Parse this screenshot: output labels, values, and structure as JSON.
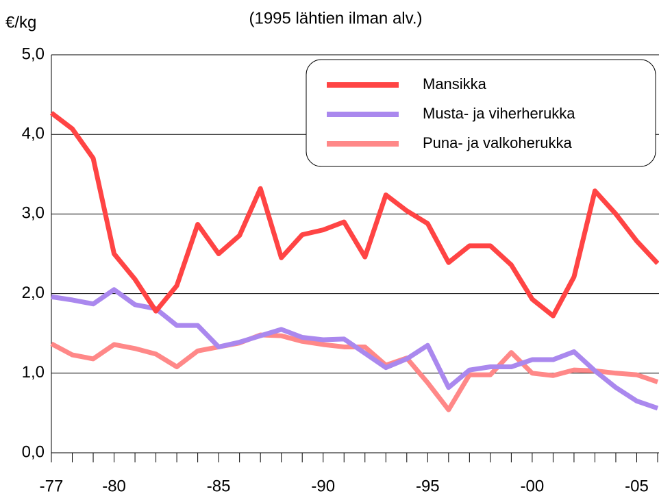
{
  "chart_data": {
    "type": "line",
    "subtitle": "(1995 lähtien ilman alv.)",
    "y_label": "€/kg",
    "categories": [
      "-77",
      null,
      null,
      "-80",
      null,
      null,
      null,
      null,
      "-85",
      null,
      null,
      null,
      null,
      "-90",
      null,
      null,
      null,
      null,
      "-95",
      null,
      null,
      null,
      null,
      "-00",
      null,
      null,
      null,
      null,
      "-05",
      null
    ],
    "series": [
      {
        "name": "Mansikka",
        "color": "#ff4444",
        "values": [
          4.27,
          4.07,
          3.7,
          2.5,
          2.18,
          1.78,
          2.1,
          2.87,
          2.5,
          2.73,
          3.32,
          2.45,
          2.74,
          2.8,
          2.9,
          2.46,
          3.24,
          3.04,
          2.88,
          2.39,
          2.6,
          2.6,
          2.36,
          1.93,
          1.72,
          2.21,
          3.29,
          3.0,
          2.66,
          2.38
        ]
      },
      {
        "name": "Musta- ja viherherukka",
        "color": "#aa88ee",
        "values": [
          1.96,
          1.92,
          1.87,
          2.05,
          1.86,
          1.81,
          1.6,
          1.6,
          1.33,
          1.39,
          1.47,
          1.55,
          1.45,
          1.42,
          1.43,
          1.25,
          1.07,
          1.18,
          1.35,
          0.82,
          1.04,
          1.08,
          1.08,
          1.17,
          1.17,
          1.27,
          1.03,
          0.82,
          0.65,
          0.56
        ]
      },
      {
        "name": "Puna- ja valkoherukka",
        "color": "#ff8888",
        "values": [
          1.37,
          1.23,
          1.18,
          1.36,
          1.31,
          1.24,
          1.08,
          1.28,
          1.33,
          1.38,
          1.48,
          1.47,
          1.4,
          1.36,
          1.33,
          1.33,
          1.1,
          1.19,
          0.88,
          0.54,
          0.98,
          0.98,
          1.26,
          1.0,
          0.97,
          1.04,
          1.03,
          1.0,
          0.98,
          0.89
        ]
      }
    ],
    "ylim": [
      0,
      5
    ],
    "yticks": [
      {
        "value": 0,
        "label": "0,0"
      },
      {
        "value": 1,
        "label": "1,0"
      },
      {
        "value": 2,
        "label": "2,0"
      },
      {
        "value": 3,
        "label": "3,0"
      },
      {
        "value": 4,
        "label": "4,0"
      },
      {
        "value": 5,
        "label": "5,0"
      }
    ],
    "grid": true,
    "legend": "upper right"
  }
}
